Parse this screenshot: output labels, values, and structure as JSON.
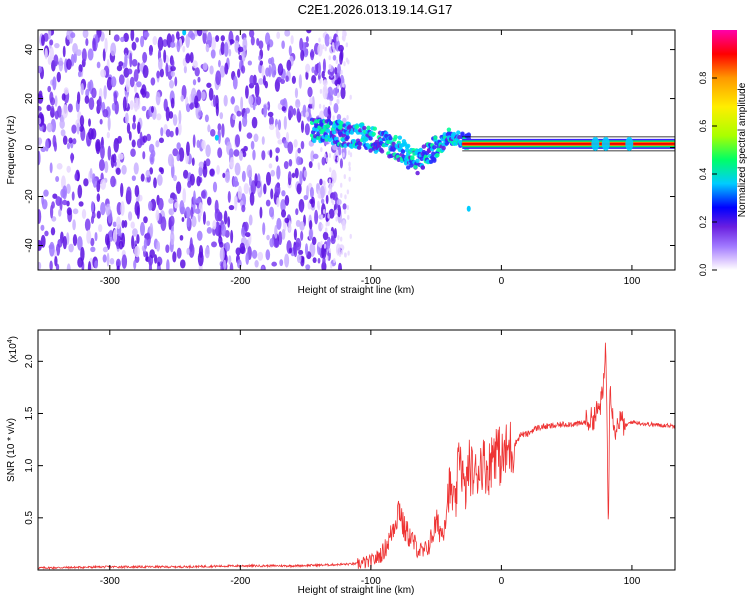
{
  "title": "C2E1.2026.013.19.14.G17",
  "chart_data": [
    {
      "type": "heatmap",
      "xlabel": "Height of straight line (km)",
      "ylabel": "Frequency (Hz)",
      "xlim": [
        -355,
        133
      ],
      "ylim": [
        -50,
        48
      ],
      "xticks": [
        -300,
        -200,
        -100,
        0,
        100
      ],
      "yticks": [
        -40,
        -20,
        0,
        20,
        40
      ],
      "colorbar": {
        "label": "Normalized spectral amplitude",
        "range": [
          0,
          1
        ],
        "ticks": [
          "0.0",
          "0.2",
          "0.4",
          "0.6",
          "0.8"
        ],
        "colors": [
          "#ffffff",
          "#e6d6ff",
          "#a078ff",
          "#6a1fe0",
          "#0000ff",
          "#00ccff",
          "#00ff66",
          "#aaff00",
          "#ffee00",
          "#ff9900",
          "#ff0000",
          "#ff00aa"
        ]
      },
      "features": {
        "noise_region_x": [
          -355,
          -135
        ],
        "carrier_ridge": {
          "x": [
            -145,
            -130,
            -110,
            -95,
            -80,
            -72,
            -65,
            -55,
            -48,
            -40,
            -30,
            -15,
            0,
            20,
            40,
            70,
            90,
            110,
            133
          ],
          "frequency": [
            7,
            6,
            5,
            3,
            0,
            -3,
            -6,
            -2,
            0,
            5,
            3,
            2,
            1.5,
            1.5,
            1.5,
            1.5,
            1.5,
            1.5,
            1.5
          ]
        },
        "stray_peaks": [
          {
            "x": -243,
            "frequency": 47
          },
          {
            "x": -218,
            "frequency": 4
          },
          {
            "x": -25,
            "frequency": -25
          }
        ]
      }
    },
    {
      "type": "line",
      "xlabel": "Height of straight line (km)",
      "ylabel": "SNR (10 * v/v)",
      "exponent_label": "(x10",
      "exponent_power": "4",
      "xlim": [
        -355,
        133
      ],
      "ylim": [
        0,
        2.3
      ],
      "xticks": [
        -300,
        -200,
        -100,
        0,
        100
      ],
      "yticks": [
        "0.5",
        "1.0",
        "1.5",
        "2.0"
      ],
      "color": "#ee3333",
      "series": [
        {
          "x": [
            -355,
            -300,
            -250,
            -200,
            -160,
            -130,
            -110,
            -100,
            -95,
            -90,
            -85,
            -82,
            -78,
            -75,
            -70,
            -65,
            -60,
            -55,
            -50,
            -45,
            -40,
            -35,
            -32,
            -28,
            -25,
            -20,
            -15,
            -10,
            -5,
            0,
            5,
            10,
            15,
            20,
            25,
            30,
            40,
            50,
            60,
            65,
            70,
            75,
            78,
            80,
            82,
            83,
            85,
            88,
            90,
            95,
            100,
            110,
            120,
            133
          ],
          "y": [
            0.02,
            0.03,
            0.03,
            0.04,
            0.04,
            0.05,
            0.06,
            0.08,
            0.12,
            0.18,
            0.32,
            0.45,
            0.62,
            0.4,
            0.32,
            0.22,
            0.16,
            0.25,
            0.45,
            0.35,
            0.8,
            0.6,
            1.2,
            0.7,
            1.0,
            0.9,
            1.05,
            0.95,
            1.2,
            1.05,
            1.15,
            1.2,
            1.3,
            1.3,
            1.35,
            1.37,
            1.38,
            1.4,
            1.4,
            1.42,
            1.45,
            1.55,
            1.7,
            2.2,
            0.4,
            1.85,
            1.5,
            1.32,
            1.45,
            1.38,
            1.42,
            1.4,
            1.39,
            1.38
          ]
        }
      ]
    }
  ]
}
